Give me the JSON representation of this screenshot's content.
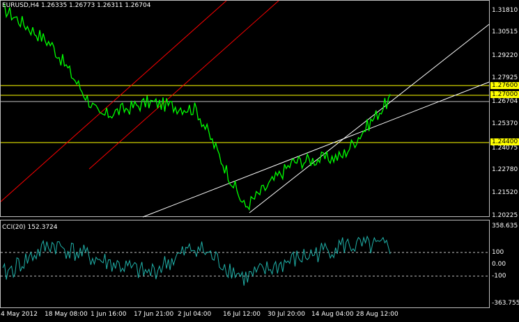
{
  "main_panel": {
    "title": "EURUSD,H4  1.26335 1.26773 1.26311 1.26704"
  },
  "cci_panel": {
    "title": "CCI(20) 152.3724"
  },
  "colors": {
    "background": "#000000",
    "price_line": "#00ff00",
    "cci_line": "#20b2aa",
    "red_channel": "#ff0000",
    "white_channel": "#ffffff",
    "horizontal_levels": "#ffff00",
    "grid_frame": "#c0c0c0"
  },
  "price_axis": {
    "ticks": [
      "1.31810",
      "1.30515",
      "1.29220",
      "1.27925",
      "1.26704",
      "1.25370",
      "1.24075",
      "1.22780",
      "1.21520",
      "1.20225"
    ],
    "levels": [
      "1.27600",
      "1.27000",
      "1.24400"
    ],
    "current_price": "1.26704"
  },
  "cci_axis": {
    "ticks": [
      "358.635",
      "100",
      "0.00",
      "-100",
      "-363.755"
    ]
  },
  "time_axis": {
    "ticks": [
      "4 May 2012",
      "18 May 08:00",
      "1 Jun 16:00",
      "17 Jun 21:00",
      "2 Jul 04:00",
      "16 Jul 12:00",
      "30 Jul 20:00",
      "14 Aug 04:00",
      "28 Aug 12:00"
    ]
  },
  "chart_data": [
    {
      "type": "line",
      "title": "EURUSD,H4  1.26335 1.26773 1.26311 1.26704",
      "xlabel": "",
      "ylabel": "",
      "ylim": [
        1.20225,
        1.3181
      ],
      "x": [
        "4 May 2012",
        "18 May 08:00",
        "1 Jun 16:00",
        "17 Jun 21:00",
        "2 Jul 04:00",
        "16 Jul 12:00",
        "30 Jul 20:00",
        "14 Aug 04:00",
        "28 Aug 12:00"
      ],
      "series": [
        {
          "values": [
            1.316,
            1.296,
            1.256,
            1.264,
            1.26,
            1.206,
            1.231,
            1.234,
            1.266
          ]
        }
      ],
      "horizontal_levels": [
        1.276,
        1.27,
        1.244
      ],
      "current_price": 1.26704,
      "channels": [
        {
          "color": "red",
          "lines": [
            [
              1.217,
              1.29
            ],
            [
              1.255,
              1.34
            ]
          ]
        },
        {
          "color": "white",
          "lines": [
            [
              1.2,
              1.26
            ],
            [
              1.209,
              1.305
            ]
          ]
        }
      ],
      "grid": false
    },
    {
      "type": "line",
      "title": "CCI(20) 152.3724",
      "xlabel": "",
      "ylabel": "",
      "ylim": [
        -363.755,
        358.635
      ],
      "x": [
        "4 May 2012",
        "18 May 08:00",
        "1 Jun 16:00",
        "17 Jun 21:00",
        "2 Jul 04:00",
        "16 Jul 12:00",
        "30 Jul 20:00",
        "14 Aug 04:00",
        "28 Aug 12:00"
      ],
      "series": [
        {
          "values": [
            -90,
            180,
            40,
            -80,
            160,
            -120,
            40,
            170,
            152.3724
          ]
        }
      ],
      "levels": [
        100,
        0,
        -100
      ],
      "grid": false
    }
  ]
}
